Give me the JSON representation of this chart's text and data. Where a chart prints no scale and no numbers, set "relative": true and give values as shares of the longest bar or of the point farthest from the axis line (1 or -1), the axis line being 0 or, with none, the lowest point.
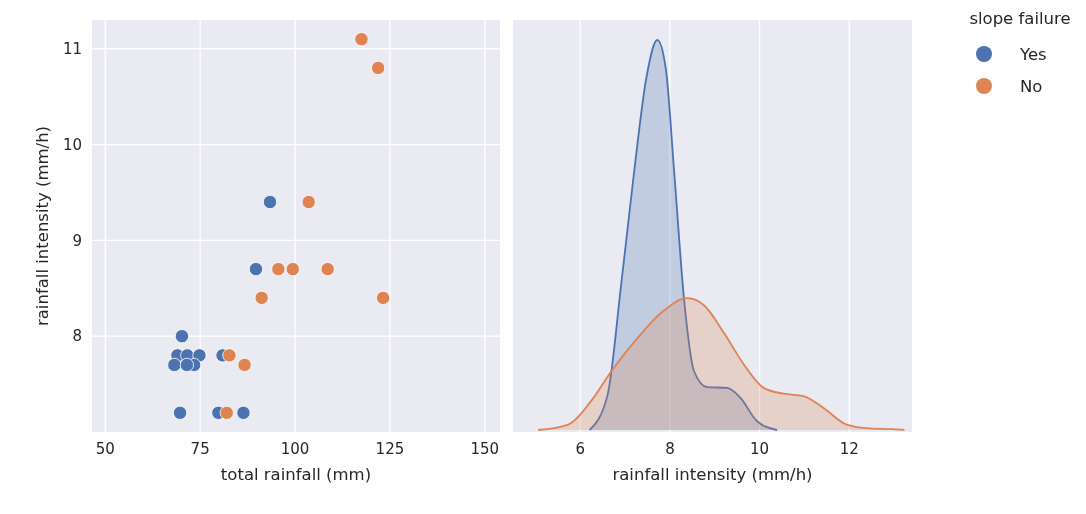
{
  "chart_data": [
    {
      "type": "scatter",
      "xlabel": "total rainfall (mm)",
      "ylabel": "rainfall intensity (mm/h)",
      "xlim": [
        46.5,
        154
      ],
      "ylim": [
        7.0,
        11.3
      ],
      "xticks": [
        50,
        75,
        100,
        125,
        150
      ],
      "yticks": [
        8,
        9,
        10,
        11
      ],
      "grid": true,
      "marker": "circle",
      "legend": false,
      "series": [
        {
          "color": "#4c72b0",
          "x": [
            93.4,
            89.7,
            70.2,
            69.0,
            71.6,
            74.8,
            80.9,
            68.2,
            73.4,
            71.5,
            69.7,
            79.8,
            86.4
          ],
          "values": [
            9.4,
            8.7,
            8.0,
            7.8,
            7.8,
            7.8,
            7.8,
            7.7,
            7.7,
            7.7,
            7.2,
            7.2,
            7.2
          ]
        },
        {
          "color": "#dd8452",
          "x": [
            117.5,
            121.9,
            103.6,
            95.6,
            99.4,
            108.6,
            91.2,
            123.2,
            82.7,
            86.7,
            82.0
          ],
          "values": [
            11.1,
            10.8,
            9.4,
            8.7,
            8.7,
            8.7,
            8.4,
            8.4,
            7.8,
            7.7,
            7.2
          ]
        }
      ]
    },
    {
      "type": "area",
      "relative": true,
      "xlabel": "rainfall intensity (mm/h)",
      "xlim": [
        4.5,
        13.4
      ],
      "xticks": [
        6,
        8,
        10,
        12
      ],
      "grid": "x",
      "legend": "right",
      "legend_title": "slope failure",
      "series": [
        {
          "name": "Yes",
          "color": "#4c72b0",
          "x": [
            6.21,
            6.61,
            6.91,
            7.21,
            7.47,
            7.72,
            7.91,
            8.09,
            8.32,
            8.54,
            8.83,
            9.28,
            9.57,
            9.94,
            10.39
          ],
          "values": [
            0,
            0.09,
            0.37,
            0.67,
            0.9,
            1.0,
            0.925,
            0.67,
            0.33,
            0.15,
            0.11,
            0.108,
            0.083,
            0.023,
            0
          ]
        },
        {
          "name": "No",
          "color": "#dd8452",
          "x": [
            5.06,
            5.73,
            6.24,
            6.69,
            7.28,
            7.8,
            8.39,
            8.76,
            9.2,
            9.65,
            10.09,
            10.54,
            10.98,
            11.42,
            11.94,
            12.46,
            12.98,
            13.23
          ],
          "values": [
            0,
            0.014,
            0.074,
            0.15,
            0.236,
            0.3,
            0.338,
            0.32,
            0.25,
            0.168,
            0.108,
            0.093,
            0.087,
            0.057,
            0.014,
            0.004,
            0.002,
            0
          ]
        }
      ]
    }
  ]
}
